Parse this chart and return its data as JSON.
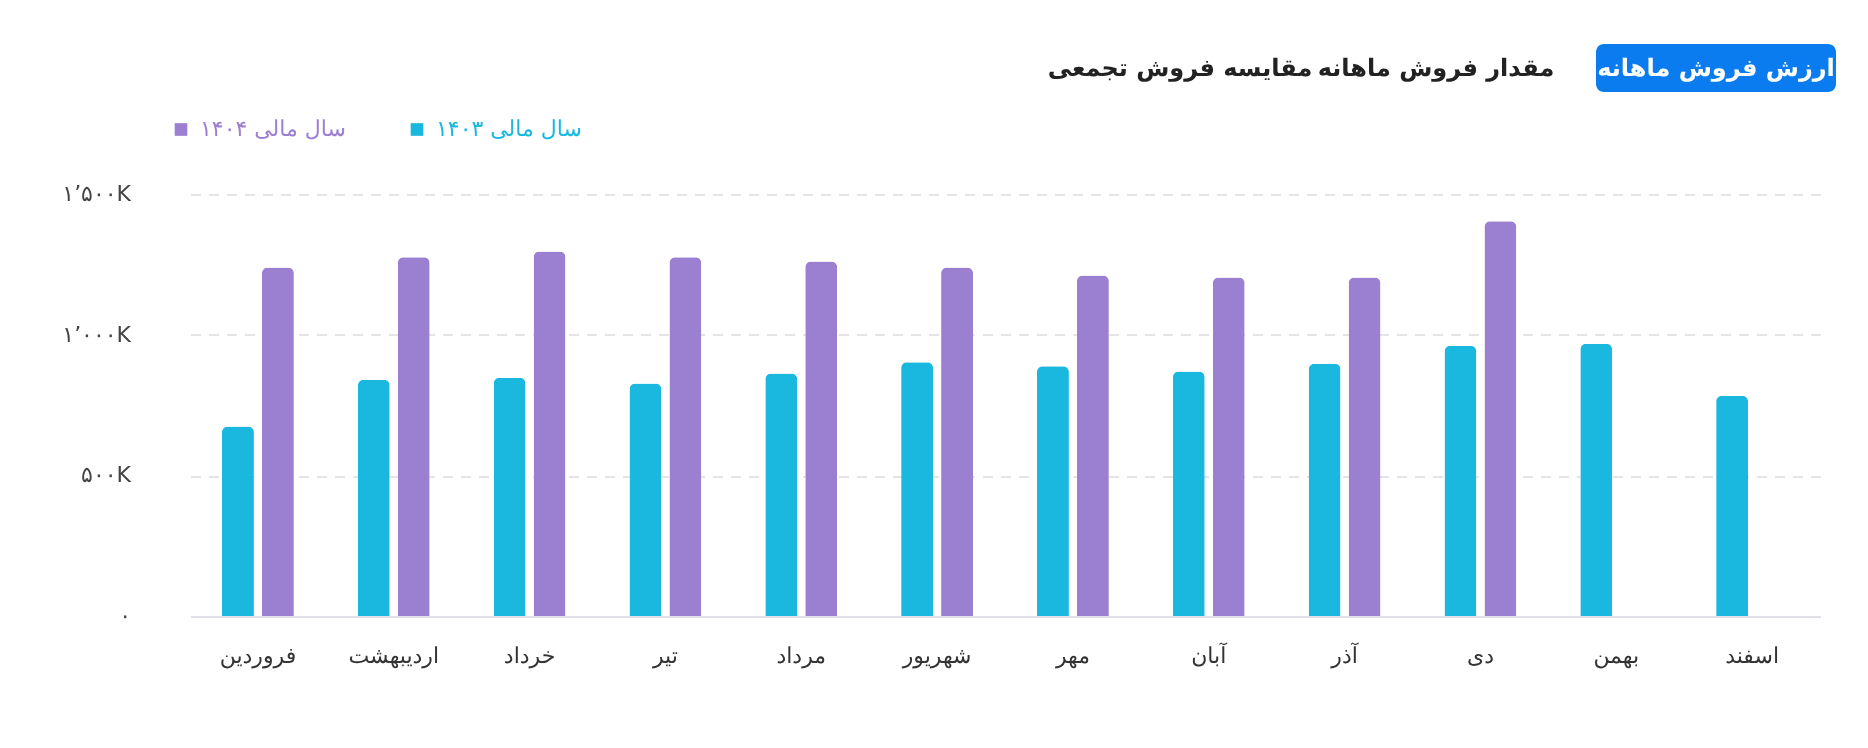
{
  "chart_data": {
    "type": "bar",
    "categories": [
      "فروردین",
      "اردیبهشت",
      "خرداد",
      "تیر",
      "مرداد",
      "شهریور",
      "مهر",
      "آبان",
      "آذر",
      "دی",
      "بهمن",
      "اسفند"
    ],
    "series": [
      {
        "name": "سال مالی ۱۴۰۳",
        "color": "#1ab7de",
        "values": [
          674,
          840,
          847,
          826,
          862,
          902,
          888,
          869,
          897,
          961,
          968,
          783
        ]
      },
      {
        "name": "سال مالی ۱۴۰۴",
        "color": "#9b7fd1",
        "values": [
          1239,
          1275,
          1296,
          1275,
          1260,
          1239,
          1210,
          1203,
          1203,
          1403,
          null,
          null
        ]
      }
    ],
    "ylim": [
      0,
      1500
    ],
    "yticks": [
      {
        "value": 0,
        "label": "۰"
      },
      {
        "value": 500,
        "label": "۵۰۰K"
      },
      {
        "value": 1000,
        "label": "۱٬۰۰۰K"
      },
      {
        "value": 1500,
        "label": "۱٬۵۰۰K"
      }
    ],
    "grid": "y",
    "legend": "top left",
    "annotations": [
      "ارزش فروش ماهانه",
      "مقدار فروش ماهانه",
      "مقایسه فروش تجمعی"
    ]
  }
}
